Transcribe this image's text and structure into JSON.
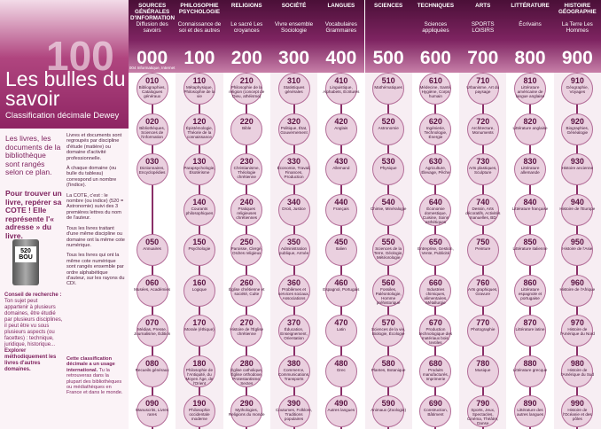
{
  "header": {
    "number": "100",
    "title": "Les bulles du savoir",
    "subtitle": "Classification décimale Dewey"
  },
  "intro": {
    "lead": "Les livres, les documents de la bibliothèque sont rangés selon ce plan.",
    "find": "Pour trouver un livre, repérer sa COTE ! Elle représente l'« adresse » du livre.",
    "book_label": "520 BOU",
    "notes": [
      "Livres et documents sont regroupés par discipline d'étude (matière) ou domaine d'activité professionnelle.",
      "À chaque domaine (ou bulle du tableau) correspond un nombre (l'indice).",
      "La COTE, c'est : le nombre (ou indice) (520 = Astronomie) suivi des 3 premières lettres du nom de l'auteur.",
      "Tous les livres traitant d'une même discipline ou domaine ont la même cote numérique.",
      "Tous les livres qui ont la même cote numérique sont rangés ensemble par ordre alphabétique d'auteur, sur les rayons du CDI."
    ],
    "advice_title": "Conseil de recherche :",
    "advice": "Ton sujet peut appartenir à plusieurs domaines, être étudié par plusieurs disciplines, il peut être vu sous plusieurs aspects (ou facettes) : technique, juridique, historique...",
    "advice_action": "Explorer méthodiquement les livres d'autres domaines.",
    "intl_title": "Cette classification décimale a un usage international.",
    "intl": "Tu la retrouveras dans la plupart des bibliothèques ou médiathèques en France et dans le monde."
  },
  "columns": [
    {
      "title": "SOURCES GÉNÉRALES D'INFORMATION",
      "subtitle": "Diffusion des savoirs",
      "code": "000",
      "note": "004 Informatique, Internet",
      "items": [
        {
          "code": "010",
          "label": "Bibliographies, Catalogues généraux"
        },
        {
          "code": "020",
          "label": "Bibliothèques, Sciences de l'information"
        },
        {
          "code": "030",
          "label": "Dictionnaires, Encyclopédies"
        },
        {
          "code": "050",
          "label": "Annuaires"
        },
        {
          "code": "060",
          "label": "Musées, Académies"
        },
        {
          "code": "070",
          "label": "Médias, Presse, Journalisme, Édition"
        },
        {
          "code": "080",
          "label": "Recueils généraux"
        },
        {
          "code": "090",
          "label": "Manuscrits, Livres rares"
        }
      ]
    },
    {
      "title": "PHILOSOPHIE PSYCHOLOGIE",
      "subtitle": "Connaissance de soi et des autres",
      "code": "100",
      "items": [
        {
          "code": "110",
          "label": "Métaphysique, Philosophie de la vie"
        },
        {
          "code": "120",
          "label": "Épistémologie, Théorie de la connaissance"
        },
        {
          "code": "130",
          "label": "Parapsychologie, Ésotérisme"
        },
        {
          "code": "140",
          "label": "Courants philosophiques"
        },
        {
          "code": "150",
          "label": "Psychologie"
        },
        {
          "code": "160",
          "label": "Logique"
        },
        {
          "code": "170",
          "label": "Morale (éthique)"
        },
        {
          "code": "180",
          "label": "Philosophie de l'Antiquité, du Moyen Âge, de l'Orient"
        },
        {
          "code": "190",
          "label": "Philosophie occidentale moderne"
        }
      ]
    },
    {
      "title": "RELIGIONS",
      "subtitle": "Le sacré Les croyances",
      "code": "200",
      "items": [
        {
          "code": "210",
          "label": "Philosophie de la religion (concept de Dieu, athéisme)"
        },
        {
          "code": "220",
          "label": "Bible"
        },
        {
          "code": "230",
          "label": "Christianisme, Théologie chrétienne"
        },
        {
          "code": "240",
          "label": "Pratiques religieuses chrétiennes"
        },
        {
          "code": "250",
          "label": "Paroisse, Clergé, Ordres religieux"
        },
        {
          "code": "260",
          "label": "Église chrétienne et société, Culte"
        },
        {
          "code": "270",
          "label": "Histoire de l'Église chrétienne"
        },
        {
          "code": "280",
          "label": "Église catholique, Église orthodoxe, Protestantisme, Sectes"
        },
        {
          "code": "290",
          "label": "Mythologies, Religions du monde"
        }
      ]
    },
    {
      "title": "SOCIÉTÉ",
      "subtitle": "Vivre ensemble Sociologie",
      "code": "300",
      "items": [
        {
          "code": "310",
          "label": "Statistiques générales"
        },
        {
          "code": "320",
          "label": "Politique, État, Gouvernement"
        },
        {
          "code": "330",
          "label": "Économie, Travail, Finances, Production"
        },
        {
          "code": "340",
          "label": "Droit, Justice"
        },
        {
          "code": "350",
          "label": "Administration publique, Armée"
        },
        {
          "code": "360",
          "label": "Problèmes et services sociaux, Associations"
        },
        {
          "code": "370",
          "label": "Éducation, Enseignement, Orientation"
        },
        {
          "code": "380",
          "label": "Commerce, Communications, Transports"
        },
        {
          "code": "390",
          "label": "Coutumes, Folklore, Traditions populaires"
        }
      ]
    },
    {
      "title": "LANGUES",
      "subtitle": "Vocabulaires Grammaires",
      "code": "400",
      "items": [
        {
          "code": "410",
          "label": "Linguistique, Alphabets, Écritures"
        },
        {
          "code": "420",
          "label": "Anglais"
        },
        {
          "code": "430",
          "label": "Allemand"
        },
        {
          "code": "440",
          "label": "Français"
        },
        {
          "code": "450",
          "label": "Italien"
        },
        {
          "code": "460",
          "label": "Espagnol, Portugais"
        },
        {
          "code": "470",
          "label": "Latin"
        },
        {
          "code": "480",
          "label": "Grec"
        },
        {
          "code": "490",
          "label": "Autres langues"
        }
      ]
    },
    {
      "title": "SCIENCES",
      "subtitle": "",
      "code": "500",
      "items": [
        {
          "code": "510",
          "label": "Mathématiques"
        },
        {
          "code": "520",
          "label": "Astronomie"
        },
        {
          "code": "530",
          "label": "Physique"
        },
        {
          "code": "540",
          "label": "Chimie, Minéralogie"
        },
        {
          "code": "550",
          "label": "Sciences de la Terre, Géologie, Météorologie"
        },
        {
          "code": "560",
          "label": "Fossiles, Paléontologie, Homme préhistorique"
        },
        {
          "code": "570",
          "label": "Sciences de la vie, Biologie, Écologie"
        },
        {
          "code": "580",
          "label": "Plantes, Botanique"
        },
        {
          "code": "590",
          "label": "Animaux (Zoologie)"
        }
      ]
    },
    {
      "title": "TECHNIQUES",
      "subtitle": "Sciences appliquées",
      "code": "600",
      "items": [
        {
          "code": "610",
          "label": "Médecine, Santé, Hygiène, Corps humain"
        },
        {
          "code": "620",
          "label": "Ingénierie, Technologie, Énergie"
        },
        {
          "code": "630",
          "label": "Agriculture, Élevage, Pêche"
        },
        {
          "code": "640",
          "label": "Économie domestique, Cuisine, Soins esthétiques"
        },
        {
          "code": "650",
          "label": "Entreprise, Gestion, Vente, Publicité"
        },
        {
          "code": "660",
          "label": "Industries chimiques, alimentaires, Métallurgie"
        },
        {
          "code": "670",
          "label": "Production technologique des matériaux bois, textiles"
        },
        {
          "code": "680",
          "label": "Produits manufacturés, Imprimerie"
        },
        {
          "code": "690",
          "label": "Construction, Bâtiment"
        }
      ]
    },
    {
      "title": "ARTS",
      "subtitle": "SPORTS LOISIRS",
      "code": "700",
      "items": [
        {
          "code": "710",
          "label": "Urbanisme, Art du paysage"
        },
        {
          "code": "720",
          "label": "Architecture, Monuments"
        },
        {
          "code": "730",
          "label": "Arts plastiques, Sculpture"
        },
        {
          "code": "740",
          "label": "Dessin, Arts décoratifs, Activités manuelles, BD"
        },
        {
          "code": "750",
          "label": "Peinture"
        },
        {
          "code": "760",
          "label": "Arts graphiques, Gravure"
        },
        {
          "code": "770",
          "label": "Photographie"
        },
        {
          "code": "780",
          "label": "Musique"
        },
        {
          "code": "790",
          "label": "Sports, Jeux, Spectacles, Cinéma, Théâtre, Danse"
        }
      ]
    },
    {
      "title": "LITTÉRATURE",
      "subtitle": "Écrivains",
      "code": "800",
      "items": [
        {
          "code": "810",
          "label": "Littérature américaine de langue anglaise"
        },
        {
          "code": "820",
          "label": "Littérature anglaise"
        },
        {
          "code": "830",
          "label": "Littérature allemande"
        },
        {
          "code": "840",
          "label": "Littérature française"
        },
        {
          "code": "850",
          "label": "Littérature italienne"
        },
        {
          "code": "860",
          "label": "Littérature espagnole et portugaise"
        },
        {
          "code": "870",
          "label": "Littérature latine"
        },
        {
          "code": "880",
          "label": "Littérature grecque"
        },
        {
          "code": "890",
          "label": "Littérature des autres langues"
        }
      ]
    },
    {
      "title": "HISTOIRE GÉOGRAPHIE",
      "subtitle": "La Terre Les Hommes",
      "code": "900",
      "items": [
        {
          "code": "910",
          "label": "Géographie, Voyages"
        },
        {
          "code": "920",
          "label": "Biographies, Généalogie"
        },
        {
          "code": "930",
          "label": "Histoire ancienne"
        },
        {
          "code": "940",
          "label": "Histoire de l'Europe"
        },
        {
          "code": "950",
          "label": "Histoire de l'Asie"
        },
        {
          "code": "960",
          "label": "Histoire de l'Afrique"
        },
        {
          "code": "970",
          "label": "Histoire de l'Amérique du Nord"
        },
        {
          "code": "980",
          "label": "Histoire de l'Amérique du Sud"
        },
        {
          "code": "990",
          "label": "Histoire de l'Océanie et des pôles"
        }
      ]
    }
  ]
}
